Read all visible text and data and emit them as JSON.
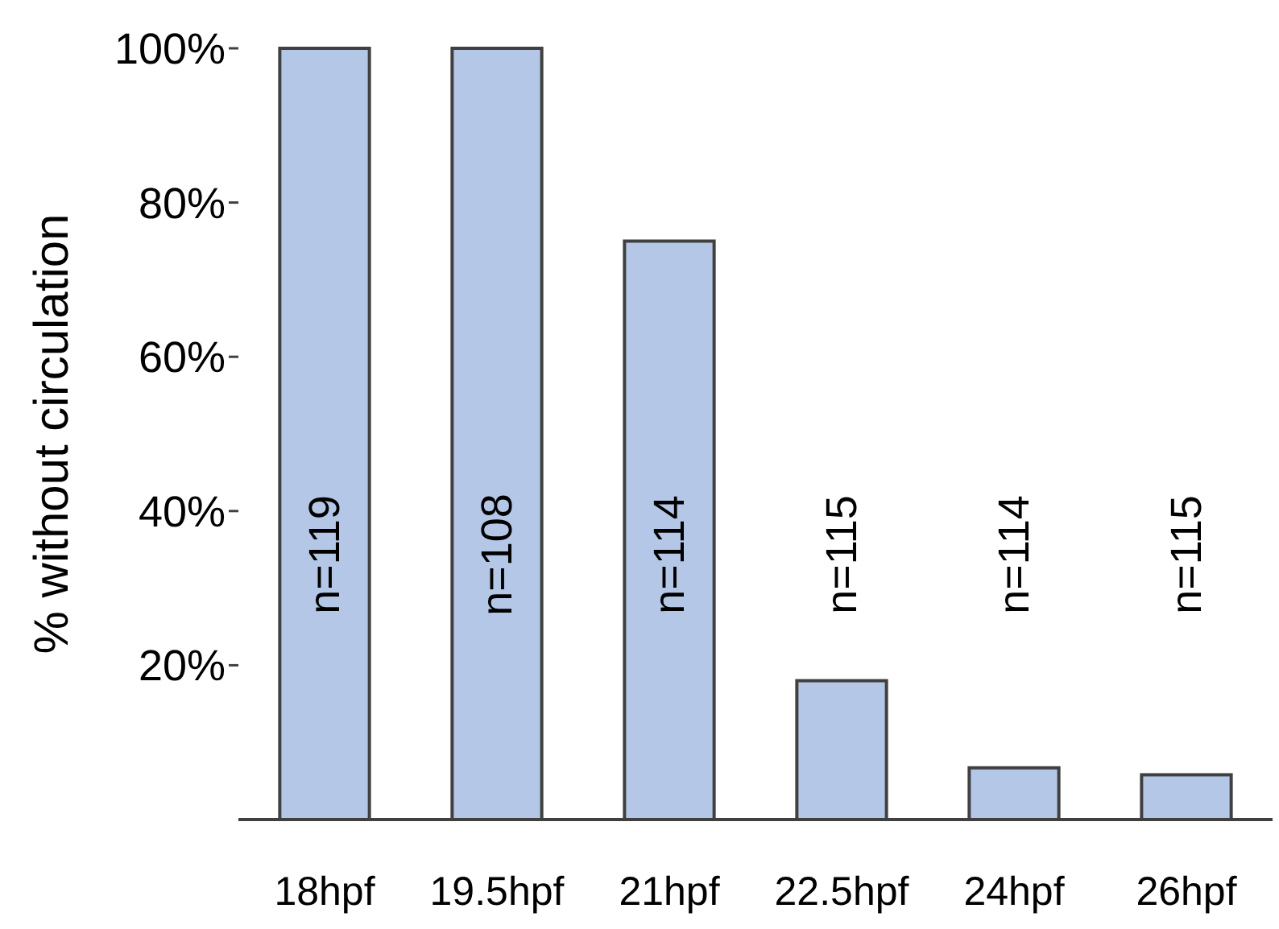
{
  "chart_data": {
    "type": "bar",
    "ylabel": "% without circulation",
    "categories": [
      "18hpf",
      "19.5hpf",
      "21hpf",
      "22.5hpf",
      "24hpf",
      "26hpf"
    ],
    "values": [
      100,
      100,
      75,
      18,
      6.7,
      5.8
    ],
    "color": "#b4c7e7",
    "ylim": [
      0,
      100
    ],
    "yticks": [
      {
        "value": 20,
        "label": "20%"
      },
      {
        "value": 40,
        "label": "40%"
      },
      {
        "value": 60,
        "label": "60%"
      },
      {
        "value": 80,
        "label": "80%"
      },
      {
        "value": 100,
        "label": "100%"
      }
    ],
    "grid": false,
    "annotations": [
      "n=119",
      "n=108",
      "n=114",
      "n=115",
      "n=114",
      "n=115"
    ]
  }
}
